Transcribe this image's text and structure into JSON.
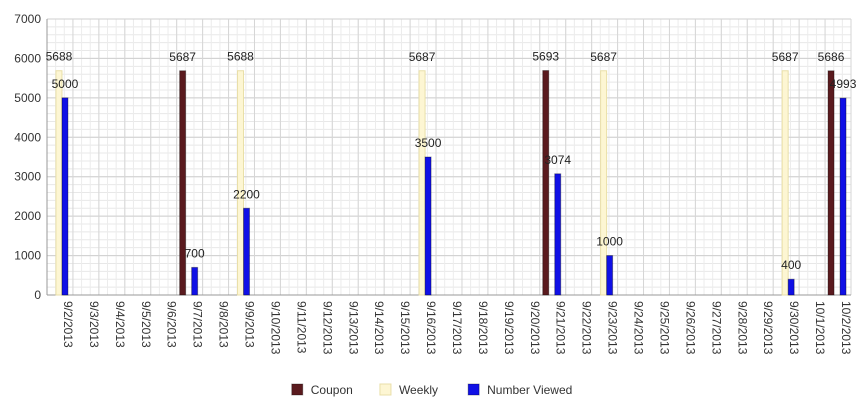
{
  "chart_data": {
    "type": "bar",
    "categories": [
      "9/2/2013",
      "9/3/2013",
      "9/4/2013",
      "9/5/2013",
      "9/6/2013",
      "9/7/2013",
      "9/8/2013",
      "9/9/2013",
      "9/10/2013",
      "9/11/2013",
      "9/12/2013",
      "9/13/2013",
      "9/14/2013",
      "9/15/2013",
      "9/16/2013",
      "9/17/2013",
      "9/18/2013",
      "9/19/2013",
      "9/20/2013",
      "9/21/2013",
      "9/22/2013",
      "9/23/2013",
      "9/24/2013",
      "9/25/2013",
      "9/26/2013",
      "9/27/2013",
      "9/28/2013",
      "9/29/2013",
      "9/30/2013",
      "10/1/2013",
      "10/2/2013"
    ],
    "series": [
      {
        "name": "Coupon",
        "color": "#5a1a1e",
        "values": [
          null,
          null,
          null,
          null,
          null,
          5687,
          null,
          null,
          null,
          null,
          null,
          null,
          null,
          null,
          null,
          null,
          null,
          null,
          null,
          5693,
          null,
          null,
          null,
          null,
          null,
          null,
          null,
          null,
          null,
          null,
          5686
        ]
      },
      {
        "name": "Weekly",
        "color": "#fdf6d3",
        "values": [
          5688,
          null,
          null,
          null,
          null,
          null,
          null,
          5688,
          null,
          null,
          null,
          null,
          null,
          null,
          5687,
          null,
          null,
          null,
          null,
          null,
          null,
          5687,
          null,
          null,
          null,
          null,
          null,
          null,
          5687,
          null,
          null
        ]
      },
      {
        "name": "Number Viewed",
        "color": "#1010e6",
        "values": [
          5000,
          null,
          null,
          null,
          null,
          700,
          null,
          2200,
          null,
          null,
          null,
          null,
          null,
          null,
          3500,
          null,
          null,
          null,
          null,
          3074,
          null,
          1000,
          null,
          null,
          null,
          null,
          null,
          null,
          400,
          null,
          4993
        ]
      }
    ],
    "yticks": [
      "0",
      "1000",
      "2000",
      "3000",
      "4000",
      "5000",
      "6000",
      "7000"
    ],
    "ylim": [
      0,
      7000
    ],
    "grid": true,
    "legend_position": "bottom"
  }
}
